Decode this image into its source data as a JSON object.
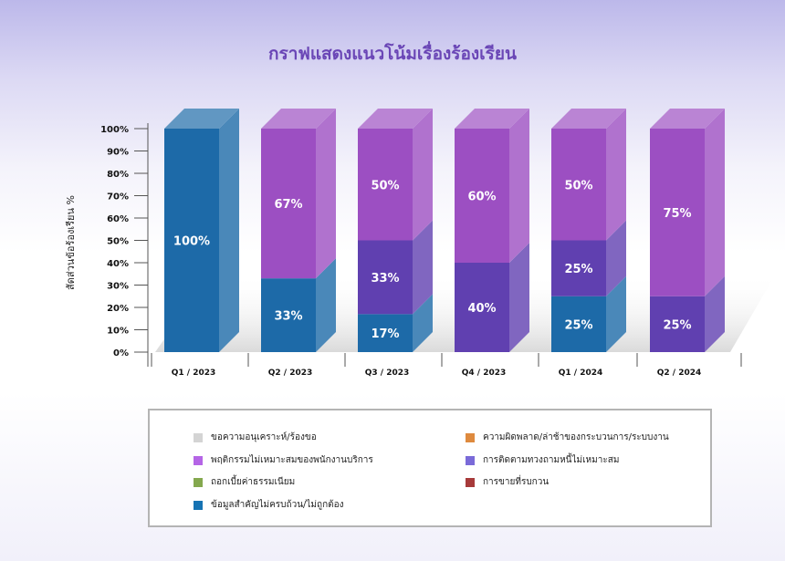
{
  "chart_data": {
    "type": "bar",
    "stacked": true,
    "percent": true,
    "title": "กราฟแสดงแนวโน้มเรื่องร้องเรียน",
    "ylabel": "สัดส่วนข้อร้องเรียน %",
    "xlabel": "",
    "ylim": [
      0,
      100
    ],
    "yticks": [
      "0%",
      "10%",
      "20%",
      "30%",
      "40%",
      "50%",
      "60%",
      "70%",
      "80%",
      "90%",
      "100%"
    ],
    "categories": [
      "Q1 / 2023",
      "Q2 / 2023",
      "Q3 / 2023",
      "Q4 / 2023",
      "Q1 / 2024",
      "Q2 / 2024"
    ],
    "series": [
      {
        "name": "ข้อมูลสำคัญไม่ครบถ้วน/ไม่ถูกต้อง",
        "color": "#1d6aa8",
        "values": [
          100,
          33,
          17,
          0,
          25,
          0
        ],
        "labels": [
          "100%",
          "33%",
          "17%",
          "",
          "25%",
          ""
        ]
      },
      {
        "name": "การติดตามทวงถามหนี้ไม่เหมาะสม",
        "color": "#6040b0",
        "values": [
          0,
          0,
          33,
          40,
          25,
          25
        ],
        "labels": [
          "",
          "",
          "33%",
          "40%",
          "25%",
          "25%"
        ]
      },
      {
        "name": "พฤติกรรมไม่เหมาะสมของพนักงานบริการ",
        "color": "#9c4fc2",
        "values": [
          0,
          67,
          50,
          60,
          50,
          75
        ],
        "labels": [
          "",
          "67%",
          "50%",
          "60%",
          "50%",
          "75%"
        ]
      }
    ],
    "legend_position": "bottom",
    "grid": false
  },
  "legend": {
    "items": [
      {
        "label": "ขอความอนุเคราะห์/ร้องขอ",
        "color": "#d4d4d4"
      },
      {
        "label": "ความผิดพลาด/ล่าช้าของกระบวนการ/ระบบงาน",
        "color": "#de8a3e"
      },
      {
        "label": "พฤติกรรมไม่เหมาะสมของพนักงานบริการ",
        "color": "#b565e6"
      },
      {
        "label": "การติดตามทวงถามหนี้ไม่เหมาะสม",
        "color": "#7a6ad8"
      },
      {
        "label": "ถอกเบี้ยค่าธรรมเนียม",
        "color": "#84a84e"
      },
      {
        "label": "การขายที่รบกวน",
        "color": "#a73a3a"
      },
      {
        "label": "ข้อมูลสำคัญไม่ครบถ้วน/ไม่ถูกต้อง",
        "color": "#1673b3"
      }
    ]
  }
}
